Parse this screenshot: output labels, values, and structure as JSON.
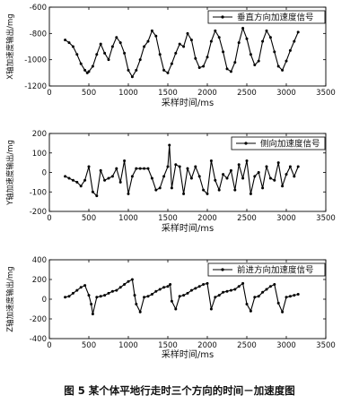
{
  "caption": "图 5  某个体平地行走时三个方向的时间－加速度图",
  "chart_data": [
    {
      "type": "line",
      "xlabel": "采样时间/ms",
      "ylabel": "X轴加速度输出/mg",
      "xlim": [
        0,
        3500
      ],
      "ylim": [
        -1200,
        -600
      ],
      "xticks": [
        0,
        500,
        1000,
        1500,
        2000,
        2500,
        3000,
        3500
      ],
      "yticks": [
        -1200,
        -1000,
        -800,
        -600
      ],
      "legend_position": "top-right",
      "series": [
        {
          "name": "垂直方向加速度信号",
          "marker": "dot",
          "x": [
            200,
            250,
            300,
            350,
            400,
            450,
            480,
            500,
            550,
            600,
            650,
            700,
            750,
            800,
            850,
            900,
            950,
            1000,
            1050,
            1100,
            1150,
            1200,
            1250,
            1300,
            1350,
            1400,
            1450,
            1500,
            1550,
            1600,
            1650,
            1700,
            1750,
            1800,
            1850,
            1900,
            1950,
            2000,
            2050,
            2100,
            2150,
            2200,
            2250,
            2300,
            2350,
            2400,
            2450,
            2500,
            2550,
            2600,
            2650,
            2700,
            2750,
            2800,
            2850,
            2900,
            2950,
            3000,
            3050,
            3100,
            3150
          ],
          "values": [
            -850,
            -870,
            -900,
            -960,
            -1030,
            -1080,
            -1100,
            -1090,
            -1050,
            -960,
            -880,
            -950,
            -1000,
            -900,
            -830,
            -870,
            -950,
            -1080,
            -1130,
            -1080,
            -1000,
            -900,
            -860,
            -780,
            -820,
            -960,
            -1080,
            -1100,
            -1030,
            -950,
            -880,
            -900,
            -800,
            -850,
            -990,
            -1060,
            -1050,
            -980,
            -860,
            -780,
            -830,
            -940,
            -1070,
            -1090,
            -1020,
            -870,
            -760,
            -840,
            -960,
            -1040,
            -1010,
            -860,
            -780,
            -830,
            -940,
            -1050,
            -1080,
            -1010,
            -930,
            -860,
            -790
          ]
        }
      ]
    },
    {
      "type": "line",
      "xlabel": "采样时间/ms",
      "ylabel": "Y轴加速度输出/mg",
      "xlim": [
        0,
        3500
      ],
      "ylim": [
        -200,
        200
      ],
      "xticks": [
        0,
        500,
        1000,
        1500,
        2000,
        2500,
        3000,
        3500
      ],
      "yticks": [
        -200,
        -100,
        0,
        100,
        200
      ],
      "legend_position": "top-right",
      "series": [
        {
          "name": "侧向加速度信号",
          "marker": "dot",
          "x": [
            200,
            250,
            300,
            350,
            400,
            450,
            500,
            550,
            600,
            650,
            700,
            750,
            800,
            850,
            900,
            950,
            1000,
            1050,
            1100,
            1150,
            1200,
            1250,
            1300,
            1350,
            1400,
            1450,
            1500,
            1520,
            1550,
            1600,
            1650,
            1700,
            1750,
            1800,
            1850,
            1900,
            1950,
            2000,
            2050,
            2100,
            2150,
            2200,
            2250,
            2300,
            2350,
            2400,
            2450,
            2500,
            2550,
            2600,
            2650,
            2700,
            2750,
            2800,
            2850,
            2900,
            2950,
            3000,
            3050,
            3100,
            3150
          ],
          "values": [
            -20,
            -30,
            -40,
            -50,
            -70,
            -40,
            30,
            -100,
            -120,
            10,
            -40,
            -30,
            -20,
            20,
            -50,
            60,
            -110,
            -20,
            20,
            20,
            20,
            20,
            -30,
            -90,
            -80,
            -20,
            30,
            140,
            -80,
            40,
            30,
            -110,
            20,
            -30,
            30,
            -20,
            -90,
            -110,
            60,
            -40,
            -90,
            -10,
            -30,
            10,
            -90,
            40,
            -30,
            60,
            -110,
            -20,
            0,
            -80,
            30,
            -30,
            -40,
            50,
            -70,
            -10,
            30,
            -20,
            30
          ]
        }
      ]
    },
    {
      "type": "line",
      "xlabel": "采样时间/ms",
      "ylabel": "Z轴加速度输出/mg",
      "xlim": [
        0,
        3500
      ],
      "ylim": [
        -400,
        400
      ],
      "xticks": [
        0,
        500,
        1000,
        1500,
        2000,
        2500,
        3000,
        3500
      ],
      "yticks": [
        -400,
        -200,
        0,
        200,
        400
      ],
      "legend_position": "top-right",
      "series": [
        {
          "name": "前进方向加速度信号",
          "marker": "dot",
          "x": [
            200,
            250,
            300,
            350,
            400,
            450,
            500,
            530,
            550,
            600,
            650,
            700,
            750,
            800,
            850,
            900,
            950,
            1000,
            1050,
            1080,
            1100,
            1150,
            1200,
            1250,
            1300,
            1350,
            1400,
            1450,
            1500,
            1530,
            1550,
            1600,
            1650,
            1700,
            1750,
            1800,
            1850,
            1900,
            1950,
            2000,
            2050,
            2100,
            2150,
            2200,
            2250,
            2300,
            2350,
            2400,
            2450,
            2500,
            2550,
            2600,
            2650,
            2700,
            2750,
            2800,
            2850,
            2900,
            2950,
            3000,
            3050,
            3100,
            3150
          ],
          "values": [
            20,
            30,
            60,
            90,
            120,
            140,
            40,
            -50,
            -150,
            20,
            30,
            40,
            60,
            80,
            90,
            120,
            150,
            180,
            200,
            40,
            -50,
            -130,
            20,
            30,
            50,
            80,
            100,
            120,
            130,
            150,
            -20,
            -100,
            30,
            40,
            60,
            90,
            110,
            130,
            150,
            160,
            -100,
            20,
            40,
            70,
            80,
            90,
            100,
            130,
            160,
            -50,
            -120,
            20,
            30,
            70,
            100,
            130,
            150,
            -40,
            -130,
            20,
            30,
            40,
            50
          ]
        }
      ]
    }
  ]
}
